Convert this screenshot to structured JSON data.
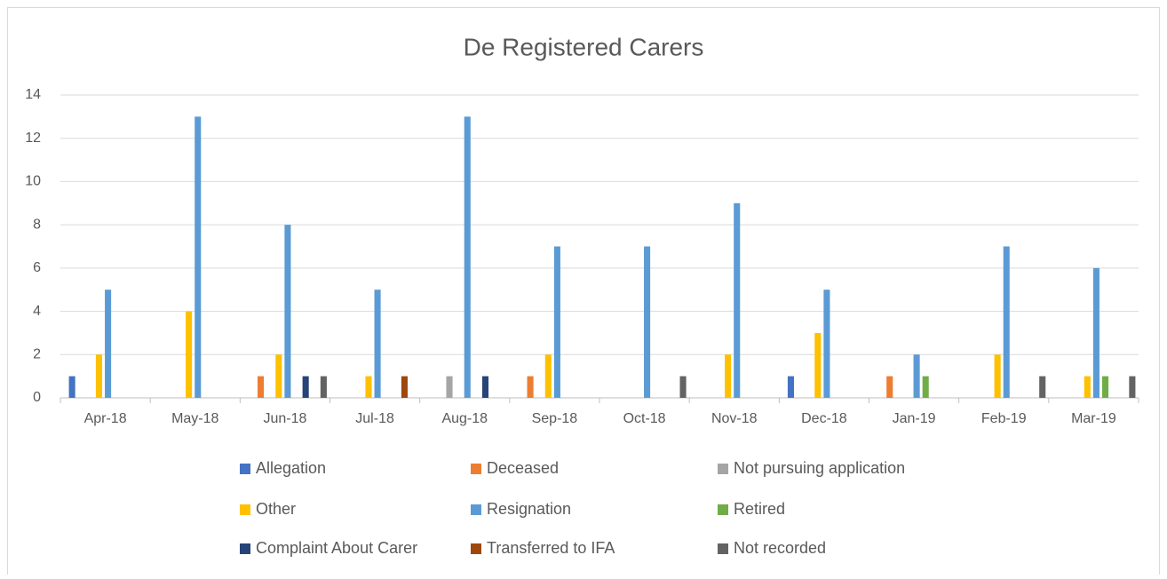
{
  "chart_data": {
    "type": "bar",
    "title": "De Registered Carers",
    "categories": [
      "Apr-18",
      "May-18",
      "Jun-18",
      "Jul-18",
      "Aug-18",
      "Sep-18",
      "Oct-18",
      "Nov-18",
      "Dec-18",
      "Jan-19",
      "Feb-19",
      "Mar-19"
    ],
    "series": [
      {
        "name": "Allegation",
        "color": "#4472c4",
        "values": [
          1,
          0,
          0,
          0,
          0,
          0,
          0,
          0,
          1,
          0,
          0,
          0
        ]
      },
      {
        "name": "Deceased",
        "color": "#ed7d31",
        "values": [
          0,
          0,
          1,
          0,
          0,
          1,
          0,
          0,
          0,
          1,
          0,
          0
        ]
      },
      {
        "name": "Not pursuing application",
        "color": "#a5a5a5",
        "values": [
          0,
          0,
          0,
          0,
          1,
          0,
          0,
          0,
          0,
          0,
          0,
          0
        ]
      },
      {
        "name": "Other",
        "color": "#ffc000",
        "values": [
          2,
          4,
          2,
          1,
          0,
          2,
          0,
          2,
          3,
          0,
          2,
          1
        ]
      },
      {
        "name": "Resignation",
        "color": "#5b9bd5",
        "values": [
          5,
          13,
          8,
          5,
          13,
          7,
          7,
          9,
          5,
          2,
          7,
          6
        ]
      },
      {
        "name": "Retired",
        "color": "#70ad47",
        "values": [
          0,
          0,
          0,
          0,
          0,
          0,
          0,
          0,
          0,
          1,
          0,
          1
        ]
      },
      {
        "name": "Complaint About Carer",
        "color": "#264478",
        "values": [
          0,
          0,
          1,
          0,
          1,
          0,
          0,
          0,
          0,
          0,
          0,
          0
        ]
      },
      {
        "name": "Transferred to IFA",
        "color": "#9e480e",
        "values": [
          0,
          0,
          0,
          1,
          0,
          0,
          0,
          0,
          0,
          0,
          0,
          0
        ]
      },
      {
        "name": "Not recorded",
        "color": "#636363",
        "values": [
          0,
          0,
          1,
          0,
          0,
          0,
          1,
          0,
          0,
          0,
          1,
          1
        ]
      }
    ],
    "ylim": [
      0,
      14
    ],
    "yticks": [
      0,
      2,
      4,
      6,
      8,
      10,
      12,
      14
    ],
    "grid": true,
    "legend": "bottom"
  }
}
